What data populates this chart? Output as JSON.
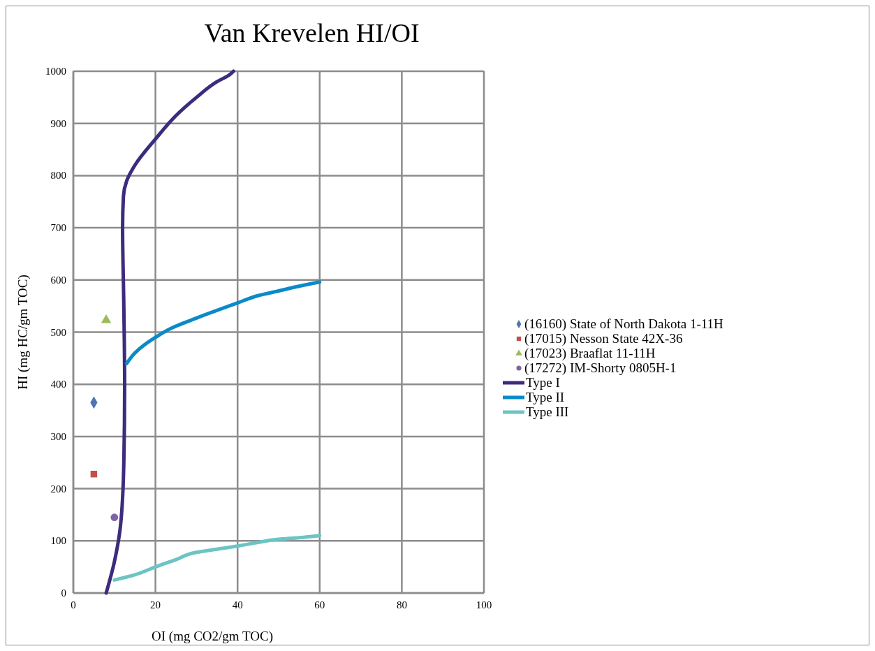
{
  "chart_data": {
    "type": "scatter",
    "title": "Van Krevelen HI/OI",
    "xlabel": "OI (mg CO2/gm TOC)",
    "ylabel": "HI (mg HC/gm TOC)",
    "xlim": [
      0,
      100
    ],
    "xticks": [
      0,
      20,
      40,
      60,
      80,
      100
    ],
    "ylim": [
      0,
      1000
    ],
    "yticks": [
      0,
      100,
      200,
      300,
      400,
      500,
      600,
      700,
      800,
      900,
      1000
    ],
    "grid": true,
    "legend": "right",
    "series": [
      {
        "name": "(16160) State of North Dakota 1-11H",
        "marker": "diamond",
        "color": "#4f74b5",
        "x": [
          5
        ],
        "values": [
          365
        ]
      },
      {
        "name": "(17015) Nesson State 42X-36",
        "marker": "square",
        "color": "#c0504d",
        "x": [
          5
        ],
        "values": [
          228
        ]
      },
      {
        "name": "(17023) Braaflat 11-11H",
        "marker": "triangle",
        "color": "#9bbb59",
        "x": [
          8
        ],
        "values": [
          523
        ]
      },
      {
        "name": "(17272) IM-Shorty 0805H-1",
        "marker": "circle",
        "color": "#8064a2",
        "x": [
          10
        ],
        "values": [
          145
        ]
      },
      {
        "name": "Type I",
        "type": "line",
        "marker": "none",
        "color": "#3d2b7e",
        "x": [
          8,
          10,
          11.5,
          12.3,
          12.5,
          12.3,
          12,
          12.2,
          13,
          15,
          20,
          25,
          30,
          35,
          38,
          39
        ],
        "values": [
          0,
          60,
          130,
          250,
          400,
          550,
          700,
          760,
          790,
          820,
          870,
          915,
          950,
          980,
          993,
          1000
        ]
      },
      {
        "name": "Type II",
        "type": "line",
        "marker": "none",
        "color": "#0a8ac8",
        "x": [
          13,
          15,
          20,
          24,
          30,
          40,
          45,
          50,
          55,
          60
        ],
        "values": [
          440,
          460,
          490,
          508,
          527,
          556,
          570,
          579,
          588,
          596
        ]
      },
      {
        "name": "Type III",
        "type": "line",
        "marker": "none",
        "color": "#6cc4c4",
        "x": [
          10,
          15,
          20,
          25,
          30,
          35,
          40,
          45,
          50,
          55,
          60
        ],
        "values": [
          25,
          35,
          50,
          64,
          78,
          84,
          90,
          97,
          103,
          106,
          110
        ]
      }
    ]
  }
}
